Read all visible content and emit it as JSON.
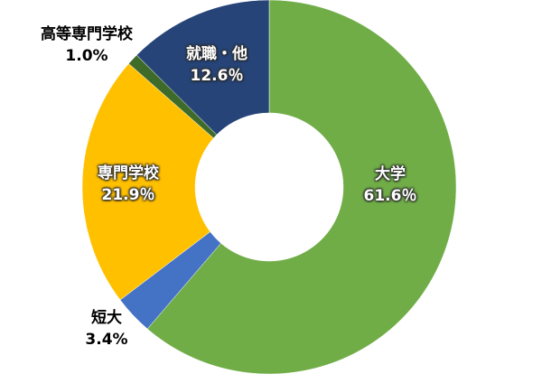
{
  "chart_data": {
    "type": "pie",
    "donut": true,
    "start": "top",
    "direction": "clockwise",
    "slices": [
      {
        "name": "大学",
        "value": 61.6,
        "label": "61.6％",
        "color": "#70AD47",
        "label_position": "inside"
      },
      {
        "name": "短大",
        "value": 3.4,
        "label": "3.4%",
        "color": "#4472C4",
        "label_position": "outside"
      },
      {
        "name": "専門学校",
        "value": 21.9,
        "label": "21.9％",
        "color": "#FFC000",
        "label_position": "inside"
      },
      {
        "name": "高等専門学校",
        "value": 1.0,
        "label": "1.0%",
        "color": "#3F6B2A",
        "label_position": "outside"
      },
      {
        "name": "就職・他",
        "value": 12.6,
        "label": "12.6％",
        "color": "#264478",
        "label_position": "inside"
      }
    ],
    "legend": "none"
  }
}
